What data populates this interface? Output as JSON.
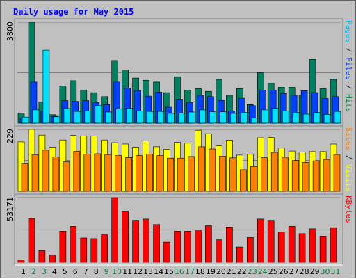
{
  "chart_data": {
    "type": "bar",
    "title": "Daily usage for May 2015",
    "days": [
      "1",
      "2",
      "3",
      "4",
      "5",
      "6",
      "7",
      "8",
      "9",
      "10",
      "11",
      "12",
      "13",
      "14",
      "15",
      "16",
      "17",
      "18",
      "19",
      "20",
      "21",
      "22",
      "23",
      "24",
      "25",
      "26",
      "27",
      "28",
      "29",
      "30",
      "31"
    ],
    "weekend_days": [
      2,
      3,
      9,
      10,
      16,
      17,
      23,
      24,
      30,
      31
    ],
    "panels": [
      {
        "id": "hits",
        "max_label": "3800",
        "ymax": 3800,
        "side_labels": [
          {
            "text": "Pages",
            "color": "#00c0ff"
          },
          {
            "text": " / ",
            "color": "#202020"
          },
          {
            "text": "Files",
            "color": "#0040ff"
          },
          {
            "text": " / ",
            "color": "#202020"
          },
          {
            "text": "Hits",
            "color": "#008040"
          }
        ],
        "series": [
          {
            "key": "hits",
            "color": "#008060",
            "values": [
              380,
              3800,
              800,
              320,
              1400,
              1600,
              1250,
              1150,
              1000,
              2360,
              2000,
              1700,
              1620,
              1550,
              1150,
              1750,
              1250,
              1300,
              1200,
              1650,
              1050,
              1300,
              700,
              1900,
              1500,
              1350,
              1350,
              1050,
              2400,
              1300,
              1650
            ]
          },
          {
            "key": "files",
            "color": "#0040ff",
            "values": [
              200,
              1550,
              450,
              260,
              850,
              820,
              850,
              780,
              700,
              1550,
              1330,
              1230,
              1020,
              1170,
              600,
              880,
              780,
              1050,
              1000,
              860,
              460,
              940,
              660,
              1250,
              1240,
              1120,
              1050,
              1220,
              1150,
              930,
              1000
            ]
          },
          {
            "key": "pages",
            "color": "#00e0ff",
            "values": [
              230,
              500,
              2750,
              240,
              550,
              440,
              460,
              660,
              420,
              540,
              560,
              460,
              440,
              440,
              370,
              380,
              420,
              500,
              430,
              430,
              370,
              410,
              200,
              500,
              560,
              460,
              410,
              340,
              400,
              330,
              440
            ]
          }
        ]
      },
      {
        "id": "visits",
        "max_label": "229",
        "ymax": 229,
        "side_labels": [
          {
            "text": "Sites",
            "color": "#ff8000"
          },
          {
            "text": " / ",
            "color": "#202020"
          },
          {
            "text": "Visits",
            "color": "#ffff00"
          }
        ],
        "series": [
          {
            "key": "visits",
            "color": "#ffff00",
            "values": [
              183,
              229,
              208,
              163,
              190,
              207,
              205,
              205,
              190,
              180,
              175,
              163,
              186,
              165,
              156,
              181,
              178,
              226,
              213,
              168,
              189,
              134,
              137,
              198,
              199,
              160,
              149,
              145,
              147,
              147,
              175
            ]
          },
          {
            "key": "sites",
            "color": "#ff8000",
            "values": [
              104,
              135,
              152,
              128,
              109,
              148,
              138,
              139,
              136,
              132,
              125,
              132,
              138,
              132,
              123,
              123,
              129,
              165,
              157,
              130,
              124,
              80,
              92,
              125,
              144,
              126,
              114,
              107,
              113,
              118,
              136
            ]
          }
        ]
      },
      {
        "id": "kbytes",
        "max_label": "53171",
        "ymax": 53171,
        "side_labels": [
          {
            "text": "KBytes",
            "color": "#ff0000"
          }
        ],
        "series": [
          {
            "key": "kbytes",
            "color": "#ff0000",
            "values": [
              2000,
              36000,
              9500,
              6000,
              25500,
              29500,
              20000,
              19500,
              22500,
              53171,
              42000,
              34500,
              35500,
              31000,
              16500,
              25500,
              25500,
              26500,
              30000,
              18500,
              29000,
              12500,
              20500,
              35500,
              34500,
              25000,
              29500,
              23500,
              27500,
              21500,
              28500
            ]
          }
        ]
      }
    ]
  }
}
